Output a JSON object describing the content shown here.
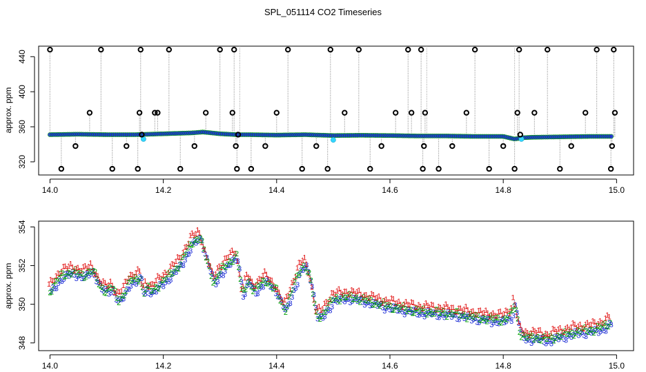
{
  "figure": {
    "title": "SPL_051114  CO2 Timeseries"
  },
  "chart_data": [
    {
      "type": "scatter",
      "ylabel": "approx. ppm",
      "xlabel": "",
      "xlim": [
        13.98,
        15.03
      ],
      "ylim": [
        305,
        452
      ],
      "x_ticks": [
        14.0,
        14.2,
        14.4,
        14.6,
        14.8,
        15.0
      ],
      "x_tick_labels": [
        "14.0",
        "14.2",
        "14.4",
        "14.6",
        "14.8",
        "15.0"
      ],
      "y_ticks": [
        320,
        360,
        400,
        440
      ],
      "y_tick_labels": [
        "320",
        "360",
        "400",
        "440"
      ],
      "grid": false,
      "colors": {
        "baseline": "#1f2fd6",
        "baseline_edge": "#00a000",
        "highlight": "#33d6ff",
        "spikes": "#000000",
        "droplines": "#7f7f7f"
      },
      "series": [
        {
          "x": [
            14.0,
            14.05,
            14.1,
            14.15,
            14.2,
            14.25,
            14.27,
            14.3,
            14.33,
            14.35,
            14.4,
            14.45,
            14.5,
            14.55,
            14.6,
            14.65,
            14.7,
            14.75,
            14.8,
            14.82,
            14.835,
            14.85,
            14.9,
            14.95,
            14.99
          ],
          "y": [
            351,
            351.5,
            351,
            351,
            352,
            353,
            354,
            352,
            351,
            351,
            350.5,
            351,
            350,
            350.3,
            350,
            349.5,
            349.5,
            349,
            349,
            346,
            347.5,
            348,
            348.5,
            349,
            349
          ]
        },
        {
          "x": [
            14.165,
            14.5,
            14.832
          ],
          "y": [
            346,
            345,
            346
          ]
        },
        {
          "x": [
            14.0,
            14.02,
            14.045,
            14.07,
            14.09,
            14.11,
            14.135,
            14.155,
            14.158,
            14.16,
            14.162,
            14.185,
            14.19,
            14.21,
            14.23,
            14.255,
            14.275,
            14.3,
            14.322,
            14.325,
            14.328,
            14.33,
            14.332,
            14.355,
            14.38,
            14.4,
            14.42,
            14.445,
            14.47,
            14.49,
            14.495,
            14.52,
            14.545,
            14.565,
            14.585,
            14.61,
            14.632,
            14.638,
            14.655,
            14.658,
            14.66,
            14.662,
            14.686,
            14.71,
            14.735,
            14.75,
            14.775,
            14.8,
            14.82,
            14.825,
            14.828,
            14.83,
            14.855,
            14.878,
            14.9,
            14.92,
            14.945,
            14.965,
            14.99,
            14.992,
            14.995,
            14.997
          ],
          "y": [
            448,
            312,
            338,
            376,
            448,
            312,
            338,
            312,
            376,
            448,
            351,
            376,
            376,
            448,
            312,
            338,
            376,
            448,
            376,
            448,
            338,
            312,
            351,
            312,
            338,
            376,
            448,
            312,
            338,
            312,
            448,
            376,
            448,
            312,
            338,
            376,
            448,
            376,
            448,
            312,
            338,
            376,
            312,
            338,
            376,
            448,
            312,
            338,
            312,
            376,
            448,
            351,
            376,
            448,
            312,
            338,
            376,
            448,
            312,
            338,
            448,
            376
          ]
        }
      ]
    },
    {
      "type": "scatter",
      "ylabel": "approx. ppm",
      "xlabel": "",
      "xlim": [
        13.98,
        15.03
      ],
      "ylim": [
        347.6,
        354.3
      ],
      "x_ticks": [
        14.0,
        14.2,
        14.4,
        14.6,
        14.8,
        15.0
      ],
      "x_tick_labels": [
        "14.0",
        "14.2",
        "14.4",
        "14.6",
        "14.8",
        "15.0"
      ],
      "y_ticks": [
        348,
        350,
        352,
        354
      ],
      "y_tick_labels": [
        "348",
        "350",
        "352",
        "354"
      ],
      "grid": false,
      "colors": {
        "1": "#e01010",
        "2": "#00a000",
        "3": "#1f2fd6"
      },
      "point_labels": [
        "1",
        "2",
        "3"
      ],
      "profile": {
        "x": [
          14.0,
          14.01,
          14.02,
          14.04,
          14.06,
          14.075,
          14.09,
          14.1,
          14.11,
          14.12,
          14.13,
          14.14,
          14.16,
          14.165,
          14.17,
          14.18,
          14.2,
          14.21,
          14.23,
          14.25,
          14.265,
          14.275,
          14.29,
          14.3,
          14.31,
          14.32,
          14.33,
          14.335,
          14.34,
          14.35,
          14.36,
          14.38,
          14.4,
          14.415,
          14.425,
          14.44,
          14.45,
          14.46,
          14.47,
          14.48,
          14.5,
          14.53,
          14.56,
          14.6,
          14.64,
          14.68,
          14.72,
          14.76,
          14.8,
          14.815,
          14.82,
          14.83,
          14.84,
          14.86,
          14.88,
          14.9,
          14.93,
          14.96,
          14.98,
          14.99
        ],
        "y": [
          350.8,
          351.2,
          351.6,
          351.8,
          351.6,
          351.9,
          351.0,
          350.8,
          351.0,
          350.3,
          350.6,
          351.3,
          351.5,
          350.6,
          351.0,
          350.8,
          351.3,
          351.6,
          352.2,
          353.3,
          353.6,
          352.6,
          351.2,
          351.8,
          352.1,
          352.4,
          352.6,
          351.6,
          350.6,
          351.4,
          350.8,
          351.4,
          350.8,
          349.8,
          350.6,
          351.8,
          352.2,
          351.4,
          349.6,
          349.5,
          350.4,
          350.5,
          350.3,
          350.0,
          349.8,
          349.7,
          349.6,
          349.4,
          349.3,
          349.6,
          350.2,
          348.6,
          348.4,
          348.4,
          348.3,
          348.5,
          348.7,
          348.8,
          349.0,
          349.2
        ]
      }
    }
  ]
}
